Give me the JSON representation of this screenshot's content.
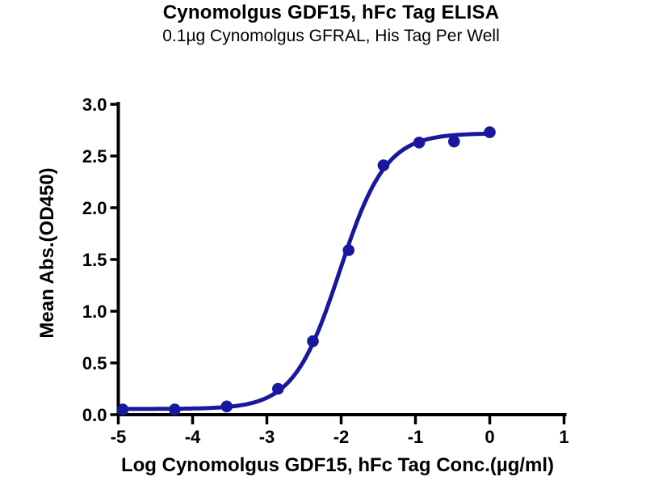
{
  "chart_data": {
    "type": "scatter",
    "title": "Cynomolgus GDF15, hFc Tag ELISA",
    "subtitle": "0.1µg Cynomolgus GFRAL, His Tag Per Well",
    "xlabel": "Log Cynomolgus GDF15, hFc Tag Conc.(µg/ml)",
    "ylabel": "Mean Abs.(OD450)",
    "xlim": [
      -5,
      1
    ],
    "ylim": [
      0,
      3
    ],
    "xticks": [
      -5,
      -4,
      -3,
      -2,
      -1,
      0,
      1
    ],
    "xtick_labels": [
      "-5",
      "-4",
      "-3",
      "-2",
      "-1",
      "0",
      "1"
    ],
    "yticks": [
      0,
      0.5,
      1,
      1.5,
      2,
      2.5,
      3
    ],
    "ytick_labels": [
      "0.0",
      "0.5",
      "1.0",
      "1.5",
      "2.0",
      "2.5",
      "3.0"
    ],
    "grid": false,
    "legend": "none",
    "axis_color": "#000000",
    "series": [
      {
        "marker": "circle",
        "color": "#18189e",
        "x": [
          -4.94,
          -4.24,
          -3.54,
          -2.85,
          -2.38,
          -1.9,
          -1.43,
          -0.95,
          -0.48,
          0.0
        ],
        "y": [
          0.05,
          0.05,
          0.08,
          0.25,
          0.71,
          1.59,
          2.41,
          2.63,
          2.64,
          2.73
        ]
      }
    ],
    "fit_curve": {
      "model": "4PL-sigmoid",
      "bottom": 0.055,
      "top": 2.72,
      "log_ec50": -2.02,
      "hill": 1.4,
      "x_range": [
        -4.97,
        0.0
      ],
      "color": "#18189e"
    }
  }
}
